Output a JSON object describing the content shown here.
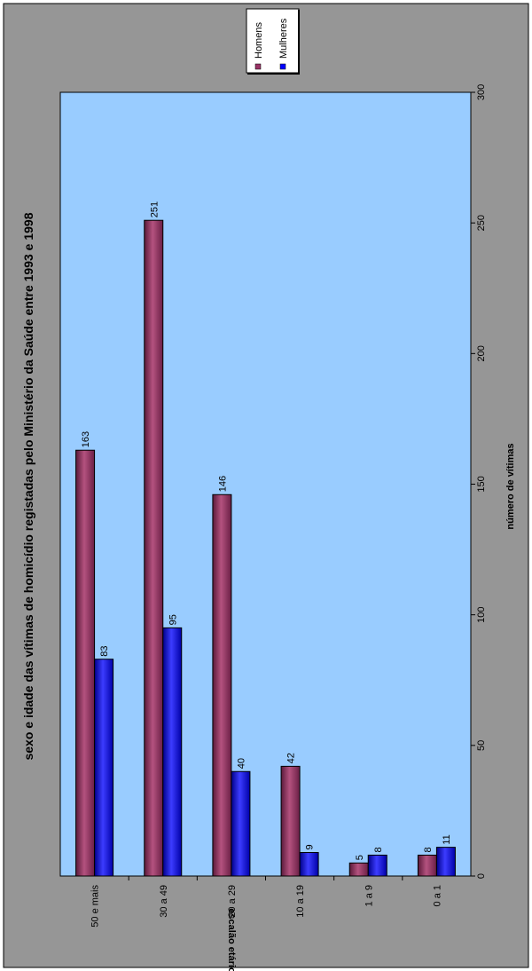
{
  "colors": {
    "background": "#969696",
    "plot_area": "#99ccff",
    "homens": "#993366",
    "mulheres": "#0000ff"
  },
  "chart_data": {
    "type": "bar",
    "orientation": "horizontal",
    "image_rotated": "90deg clockwise",
    "title": "sexo e idade das vítimas de homicídio registadas pelo Ministério da Saúde entre 1993 e 1998",
    "xlabel": "escalão etário",
    "ylabel": "número de vítimas",
    "categories": [
      "50 e mais",
      "30 a 49",
      "20 a 29",
      "10 a 19",
      "1 a 9",
      "0 a 1"
    ],
    "series": [
      {
        "name": "Homens",
        "values": [
          163,
          251,
          146,
          42,
          5,
          8
        ]
      },
      {
        "name": "Mulheres",
        "values": [
          83,
          95,
          40,
          9,
          8,
          11
        ]
      }
    ],
    "ylim": [
      0,
      300
    ],
    "ticks": [
      0,
      50,
      100,
      150,
      200,
      250,
      300
    ],
    "grid": false,
    "legend": "top-right"
  }
}
